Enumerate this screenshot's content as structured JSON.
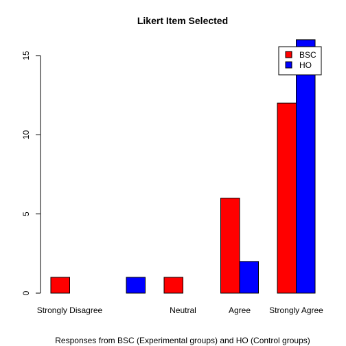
{
  "chart_data": {
    "type": "bar",
    "title": "Likert Item Selected",
    "xlabel": "Responses from BSC (Experimental groups) and HO (Control groups)",
    "ylabel": "",
    "ylim": [
      0,
      16
    ],
    "y_ticks": [
      "0",
      "5",
      "10",
      "15"
    ],
    "categories": [
      "Strongly Disagree",
      "",
      "Neutral",
      "Agree",
      "Strongly Agree"
    ],
    "series": [
      {
        "name": "BSC",
        "color": "#ff0000",
        "values": [
          1,
          0,
          1,
          6,
          12
        ]
      },
      {
        "name": "HO",
        "color": "#0000ff",
        "values": [
          0,
          1,
          0,
          2,
          16
        ]
      }
    ],
    "legend_position": "top-right",
    "grid": false
  }
}
